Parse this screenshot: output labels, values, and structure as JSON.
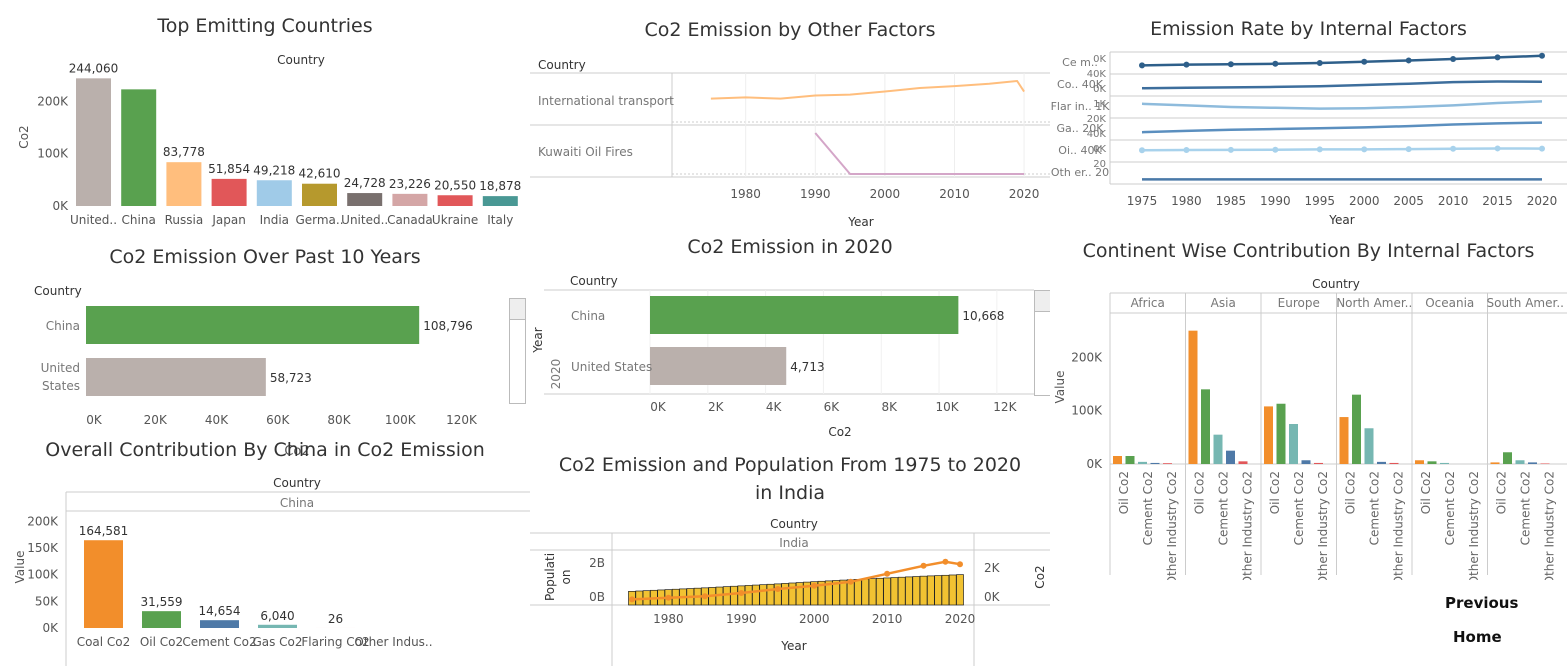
{
  "nav": {
    "previous": "Previous",
    "home": "Home"
  },
  "charts": {
    "top": {
      "title": "Top Emitting Countries",
      "header": "Country",
      "ylabel": "Co2",
      "yticks": [
        "200K",
        "100K",
        "0K"
      ],
      "chart_data": {
        "type": "bar",
        "categories": [
          "United..",
          "China",
          "Russia",
          "Japan",
          "India",
          "Germa..",
          "United..",
          "Canada",
          "Ukraine",
          "Italy"
        ],
        "values": [
          244060,
          223000,
          83778,
          51854,
          49218,
          42610,
          24728,
          23226,
          20550,
          18878
        ],
        "labels": [
          "244,060",
          "",
          "83,778",
          "51,854",
          "49,218",
          "42,610",
          "24,728",
          "23,226",
          "20,550",
          "18,878"
        ],
        "colors": [
          "#bab0ac",
          "#59a14f",
          "#ffbe7d",
          "#e15759",
          "#a0cbe8",
          "#b6992d",
          "#79706e",
          "#d4a6a6",
          "#e15759",
          "#499894"
        ],
        "ylim": [
          0,
          260000
        ]
      }
    },
    "other": {
      "title": "Co2 Emission by Other Factors",
      "header": "Country",
      "rows": [
        "International transport",
        "Kuwaiti Oil Fires"
      ],
      "xlabel": "Year",
      "xticks": [
        "1980",
        "1990",
        "2000",
        "2010",
        "2020"
      ],
      "chart_data": {
        "type": "line",
        "x": [
          1975,
          1980,
          1985,
          1990,
          1995,
          2000,
          2005,
          2010,
          2015,
          2019,
          2020
        ],
        "series": [
          {
            "values": [
              600,
              630,
              600,
              680,
              700,
              780,
              870,
              920,
              980,
              1050,
              780
            ]
          },
          {
            "values": [
              null,
              null,
              null,
              1200,
              0,
              0,
              0,
              0,
              0,
              0,
              0
            ]
          }
        ],
        "xlim": [
          1972,
          2022
        ]
      }
    },
    "rate": {
      "title": "Emission Rate by Internal Factors",
      "xlabel": "Year",
      "xticks": [
        "1975",
        "1980",
        "1985",
        "1990",
        "1995",
        "2000",
        "2005",
        "2010",
        "2015",
        "2020"
      ],
      "rowlabels": [
        "Ce m..",
        "Co.. 40K",
        "Flar in.. 1K",
        "Ga.. 20K",
        "Oi.. 40K",
        "Oth er.. 20"
      ],
      "axisvals": [
        "0K",
        "40K",
        "0K",
        "1K",
        "20K",
        "40K",
        "0K",
        "20"
      ],
      "chart_data": {
        "type": "line",
        "x": [
          1975,
          1980,
          1985,
          1990,
          1995,
          2000,
          2005,
          2010,
          2015,
          2020
        ],
        "series": [
          {
            "values": [
              0.35,
              0.4,
              0.42,
              0.45,
              0.5,
              0.58,
              0.66,
              0.75,
              0.85,
              0.95
            ]
          },
          {
            "values": [
              0.3,
              0.33,
              0.35,
              0.38,
              0.42,
              0.5,
              0.58,
              0.68,
              0.72,
              0.7
            ]
          },
          {
            "values": [
              0.7,
              0.6,
              0.5,
              0.45,
              0.4,
              0.42,
              0.5,
              0.6,
              0.75,
              0.85
            ]
          },
          {
            "values": [
              0.3,
              0.38,
              0.45,
              0.5,
              0.55,
              0.6,
              0.68,
              0.78,
              0.85,
              0.9
            ]
          },
          {
            "values": [
              0.55,
              0.56,
              0.57,
              0.58,
              0.6,
              0.6,
              0.62,
              0.64,
              0.66,
              0.65
            ]
          },
          {
            "values": [
              0.1,
              0.1,
              0.1,
              0.1,
              0.1,
              0.1,
              0.1,
              0.1,
              0.1,
              0.1
            ]
          }
        ]
      }
    },
    "past10": {
      "title": "Co2 Emission Over Past 10 Years",
      "header": "Country",
      "xticks": [
        "0K",
        "20K",
        "40K",
        "60K",
        "80K",
        "100K",
        "120K"
      ],
      "chart_data": {
        "type": "bar",
        "categories": [
          "China",
          "United States"
        ],
        "values": [
          108796,
          58723
        ],
        "labels": [
          "108,796",
          "58,723"
        ],
        "colors": [
          "#59a14f",
          "#bab0ac"
        ],
        "xlim": [
          0,
          128000
        ]
      }
    },
    "y2020": {
      "title": "Co2 Emission in 2020",
      "header": "Country",
      "yheader": "Year",
      "year": "2020",
      "xlabel": "Co2",
      "xticks": [
        "0K",
        "2K",
        "4K",
        "6K",
        "8K",
        "10K",
        "12K"
      ],
      "chart_data": {
        "type": "bar",
        "categories": [
          "China",
          "United States"
        ],
        "values": [
          10668,
          4713
        ],
        "labels": [
          "10,668",
          "4,713"
        ],
        "colors": [
          "#59a14f",
          "#bab0ac"
        ],
        "xlim": [
          0,
          12800
        ]
      }
    },
    "continent": {
      "title": "Continent Wise Contribution By Internal Factors",
      "header": "Country",
      "ylabel": "Value",
      "yticks": [
        "200K",
        "100K",
        "0K"
      ],
      "catlabels": [
        "Oil Co2",
        "Cement Co2",
        "Other Industry Co2"
      ],
      "chart_data": {
        "type": "bar",
        "groups": [
          "Africa",
          "Asia",
          "Europe",
          "North Amer..",
          "Oceania",
          "South Amer.."
        ],
        "bar_colors": [
          "#f28e2b",
          "#59a14f",
          "#76b7b2",
          "#4e79a7",
          "#e15759"
        ],
        "values": [
          [
            15000,
            15000,
            4000,
            2000,
            1500
          ],
          [
            250000,
            140000,
            55000,
            25000,
            5000
          ],
          [
            108000,
            113000,
            75000,
            7000,
            2000
          ],
          [
            88000,
            130000,
            67000,
            4000,
            2000
          ],
          [
            7000,
            5000,
            2000,
            0,
            0
          ],
          [
            3000,
            22000,
            7000,
            3000,
            1000
          ]
        ],
        "ylim": [
          0,
          270000
        ]
      }
    },
    "china": {
      "title": "Overall Contribution By China in Co2 Emission",
      "header": "Country",
      "subheader": "China",
      "ylabel": "Value",
      "overlap": "Co2",
      "yticks": [
        "200K",
        "150K",
        "100K",
        "50K",
        "0K"
      ],
      "chart_data": {
        "type": "bar",
        "categories": [
          "Coal Co2",
          "Oil Co2",
          "Cement Co2",
          "Gas Co2",
          "Flaring Co2",
          "Other Indus.."
        ],
        "values": [
          164581,
          31559,
          14654,
          6040,
          26,
          0
        ],
        "labels": [
          "164,581",
          "31,559",
          "14,654",
          "6,040",
          "26",
          ""
        ],
        "colors": [
          "#f28e2b",
          "#59a14f",
          "#4e79a7",
          "#76b7b2",
          "#e15759",
          "#bab0ac"
        ],
        "ylim": [
          0,
          210000
        ]
      }
    },
    "india": {
      "title": "Co2 Emission and Population From 1975 to 2020 in India",
      "header": "Country",
      "subheader": "India",
      "ylabel_left": "Populati on",
      "ylabel_right": "Co2",
      "yticks_left": [
        "2B",
        "0B"
      ],
      "yticks_right": [
        "2K",
        "0K"
      ],
      "xlabel": "Year",
      "xticks": [
        "1980",
        "1990",
        "2000",
        "2010",
        "2020"
      ],
      "chart_data": {
        "type": "bar",
        "x": [
          1975,
          1980,
          1985,
          1990,
          1995,
          2000,
          2005,
          2010,
          2015,
          2018,
          2020
        ],
        "series": [
          {
            "values": [
              0.62,
              0.7,
              0.78,
              0.87,
              0.96,
              1.06,
              1.15,
              1.23,
              1.31,
              1.35,
              1.38
            ]
          },
          {
            "values": [
              0.1,
              0.2,
              0.3,
              0.5,
              0.75,
              0.95,
              1.2,
              1.7,
              2.2,
              2.45,
              2.3
            ]
          }
        ]
      }
    }
  }
}
